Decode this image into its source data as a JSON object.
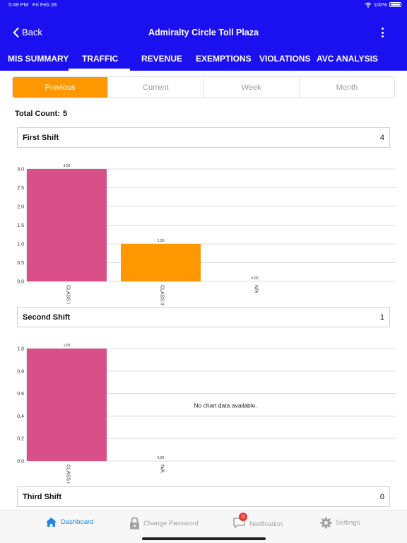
{
  "status": {
    "time": "5:49 PM",
    "date": "Fri Feb 28",
    "battery": "100%",
    "battery_level": 1.0
  },
  "nav": {
    "back_label": "Back",
    "title": "Admiralty Circle Toll Plaza"
  },
  "tabs": [
    {
      "label": "MIS SUMMARY"
    },
    {
      "label": "TRAFFIC",
      "selected": true
    },
    {
      "label": "REVENUE"
    },
    {
      "label": "EXEMPTIONS"
    },
    {
      "label": "VIOLATIONS"
    },
    {
      "label": "AVC ANALYSIS"
    }
  ],
  "periods": [
    {
      "label": "Previous",
      "selected": true
    },
    {
      "label": "Current"
    },
    {
      "label": "Week"
    },
    {
      "label": "Month"
    }
  ],
  "total": {
    "label": "Total Count:",
    "value": "5"
  },
  "shifts": [
    {
      "name": "First Shift",
      "count": "4"
    },
    {
      "name": "Second Shift",
      "count": "1"
    },
    {
      "name": "Third Shift",
      "count": "0"
    }
  ],
  "colors": {
    "header": "#1b10f0",
    "accent": "#ff9800",
    "bar_pink": "#d94f87",
    "active_tab": "#1e88e5"
  },
  "chart_data": [
    {
      "type": "bar",
      "categories": [
        "CLASS I",
        "CLASS II",
        "N/A"
      ],
      "values": [
        3.0,
        1.0,
        0.0
      ],
      "value_labels": [
        "3.00",
        "1.00",
        "0.00"
      ],
      "bar_colors": [
        "#d94f87",
        "#ff9800",
        "#d94f87"
      ],
      "yticks": [
        "0.0",
        "0.5",
        "1.0",
        "1.5",
        "2.0",
        "2.5",
        "3.0"
      ],
      "ylim": [
        0,
        3.0
      ],
      "grid": true
    },
    {
      "type": "bar",
      "categories": [
        "CLASS I",
        "N/A"
      ],
      "values": [
        1.0,
        0.0
      ],
      "value_labels": [
        "1.00",
        "0.00"
      ],
      "bar_colors": [
        "#d94f87",
        "#d94f87"
      ],
      "yticks": [
        "0.0",
        "0.2",
        "0.4",
        "0.6",
        "0.8",
        "1.0"
      ],
      "ylim": [
        0,
        1.0
      ],
      "grid": true,
      "annotation": "No chart data available."
    }
  ],
  "bottom_tabs": [
    {
      "label": "Dashboard",
      "icon": "home-icon",
      "selected": true
    },
    {
      "label": "Change Password",
      "icon": "lock-icon"
    },
    {
      "label": "Notification",
      "icon": "chat-bubble-icon",
      "badge": "0"
    },
    {
      "label": "Settings",
      "icon": "gear-icon"
    }
  ]
}
